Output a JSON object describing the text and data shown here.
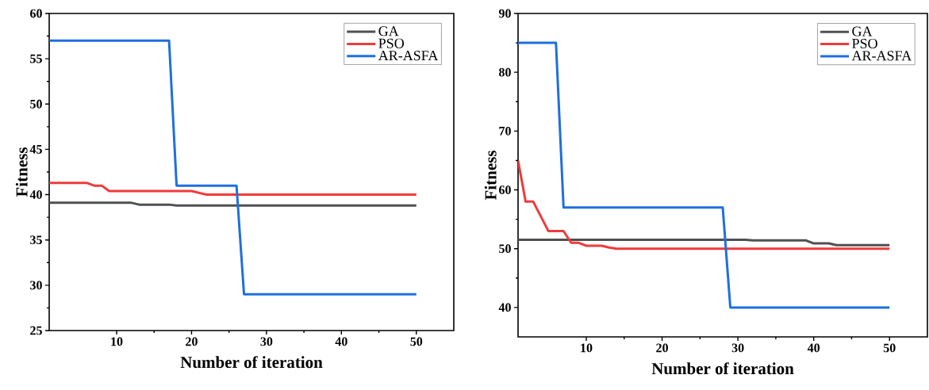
{
  "chart_data": [
    {
      "type": "line",
      "xlabel": "Number of iteration",
      "ylabel": "Fitness",
      "xlim": [
        1,
        55
      ],
      "xticks": [
        10,
        20,
        30,
        40,
        50
      ],
      "ylim": [
        25,
        60
      ],
      "yticks": [
        25,
        30,
        35,
        40,
        45,
        50,
        55,
        60
      ],
      "legend": "top right",
      "grid": false,
      "marker": "none",
      "line_style": "solid",
      "series": [
        {
          "name": "GA",
          "color": "#505050",
          "x": [
            1,
            12,
            13,
            17,
            18,
            50
          ],
          "values": [
            39.1,
            39.1,
            38.9,
            38.9,
            38.8,
            38.8
          ]
        },
        {
          "name": "PSO",
          "color": "#ef3b3b",
          "x": [
            1,
            6,
            7,
            8,
            9,
            20,
            21,
            22,
            50
          ],
          "values": [
            41.3,
            41.3,
            41.0,
            41.0,
            40.4,
            40.4,
            40.2,
            40.0,
            40.0
          ]
        },
        {
          "name": "AR-ASFA",
          "color": "#1f6fe0",
          "x": [
            1,
            17,
            18,
            26,
            27,
            50
          ],
          "values": [
            57,
            57,
            41,
            41,
            29,
            29
          ]
        }
      ]
    },
    {
      "type": "line",
      "xlabel": "Number of iteration",
      "ylabel": "Fitness",
      "xlim": [
        1,
        55
      ],
      "xticks": [
        10,
        20,
        30,
        40,
        50
      ],
      "ylim": [
        35,
        90
      ],
      "yticks": [
        40,
        50,
        60,
        70,
        80,
        90
      ],
      "legend": "top right",
      "grid": false,
      "marker": "none",
      "line_style": "solid",
      "series": [
        {
          "name": "GA",
          "color": "#505050",
          "x": [
            1,
            31,
            32,
            39,
            40,
            42,
            43,
            50
          ],
          "values": [
            51.5,
            51.5,
            51.4,
            51.4,
            50.9,
            50.9,
            50.6,
            50.6
          ]
        },
        {
          "name": "PSO",
          "color": "#ef3b3b",
          "x": [
            1,
            2,
            3,
            4,
            5,
            7,
            8,
            9,
            10,
            12,
            13,
            14,
            50
          ],
          "values": [
            65,
            58,
            58,
            55.5,
            53,
            53,
            51,
            51,
            50.5,
            50.5,
            50.2,
            50,
            50
          ]
        },
        {
          "name": "AR-ASFA",
          "color": "#1f6fe0",
          "x": [
            1,
            6,
            7,
            28,
            29,
            50
          ],
          "values": [
            85,
            85,
            57,
            57,
            40,
            40
          ]
        }
      ]
    }
  ]
}
